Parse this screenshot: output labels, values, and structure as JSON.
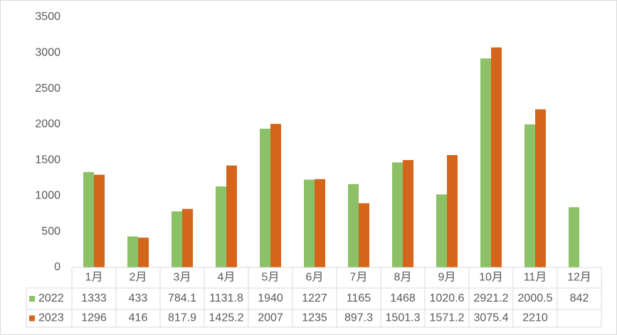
{
  "chart_data": {
    "type": "bar",
    "categories": [
      "1月",
      "2月",
      "3月",
      "4月",
      "5月",
      "6月",
      "7月",
      "8月",
      "9月",
      "10月",
      "11月",
      "12月"
    ],
    "series": [
      {
        "name": "2022",
        "color": "#8cc168",
        "values": [
          1333,
          433,
          784.1,
          1131.8,
          1940,
          1227,
          1165,
          1468,
          1020.6,
          2921.2,
          2000.5,
          842
        ]
      },
      {
        "name": "2023",
        "color": "#d4651b",
        "values": [
          1296,
          416,
          817.9,
          1425.2,
          2007,
          1235,
          897.3,
          1501.3,
          1571.2,
          3075.4,
          2210,
          null
        ]
      }
    ],
    "ylim": [
      0,
      3500
    ],
    "yticks": [
      0,
      500,
      1000,
      1500,
      2000,
      2500,
      3000,
      3500
    ],
    "grid": false,
    "data_table": true
  }
}
